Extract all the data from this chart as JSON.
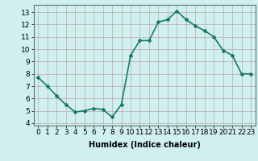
{
  "x": [
    0,
    1,
    2,
    3,
    4,
    5,
    6,
    7,
    8,
    9,
    10,
    11,
    12,
    13,
    14,
    15,
    16,
    17,
    18,
    19,
    20,
    21,
    22,
    23
  ],
  "y": [
    7.7,
    7.0,
    6.2,
    5.5,
    4.9,
    5.0,
    5.2,
    5.1,
    4.5,
    5.5,
    9.5,
    10.7,
    10.7,
    12.2,
    12.4,
    13.1,
    12.4,
    11.9,
    11.5,
    11.0,
    9.9,
    9.5,
    8.0,
    8.0
  ],
  "line_color": "#1a7a6a",
  "marker": "D",
  "marker_size": 2,
  "bg_color": "#d0efef",
  "grid_color": "#c0a8a8",
  "xlabel": "Humidex (Indice chaleur)",
  "xlabel_fontsize": 7,
  "xlim": [
    -0.5,
    23.5
  ],
  "ylim": [
    3.8,
    13.6
  ],
  "yticks": [
    4,
    5,
    6,
    7,
    8,
    9,
    10,
    11,
    12,
    13
  ],
  "xticks": [
    0,
    1,
    2,
    3,
    4,
    5,
    6,
    7,
    8,
    9,
    10,
    11,
    12,
    13,
    14,
    15,
    16,
    17,
    18,
    19,
    20,
    21,
    22,
    23
  ],
  "tick_fontsize": 6.5,
  "line_width": 1.2
}
